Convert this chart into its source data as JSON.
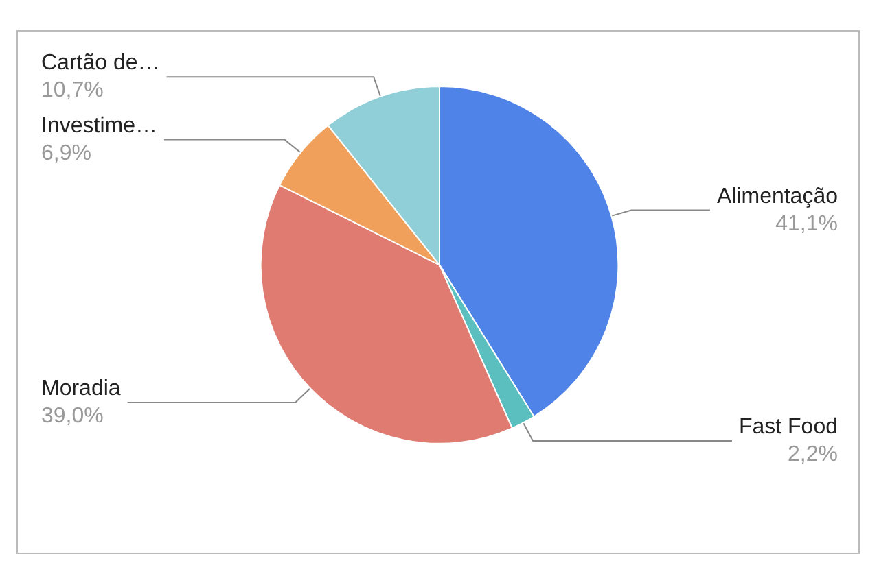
{
  "chart_data": {
    "type": "pie",
    "categories": [
      "Alimentação",
      "Fast Food",
      "Moradia",
      "Investime…",
      "Cartão de…"
    ],
    "values": [
      41.1,
      2.2,
      39.0,
      6.9,
      10.7
    ],
    "value_labels": [
      "41,1%",
      "2,2%",
      "39,0%",
      "6,9%",
      "10,7%"
    ],
    "colors": [
      "#5083e8",
      "#5bbfc0",
      "#e07b72",
      "#f0a05a",
      "#90cfd8"
    ],
    "legend": false
  }
}
